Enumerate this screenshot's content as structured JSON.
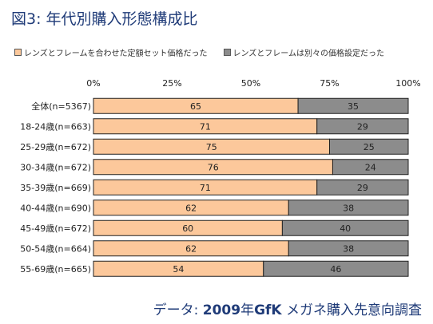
{
  "title": "図3: 年代別購入形態構成比",
  "source": {
    "prefix": "データ: ",
    "year": "2009",
    "mid": "年",
    "brand": "GfK",
    "suffix": " メガネ購入先意向調査"
  },
  "chart_data": {
    "type": "bar",
    "orientation": "horizontal",
    "stacked": true,
    "legend_position": "top",
    "xlim": [
      0,
      100
    ],
    "x_ticks": [
      "0%",
      "25%",
      "50%",
      "75%",
      "100%"
    ],
    "categories": [
      "全体(n=5367)",
      "18-24歳(n=663)",
      "25-29歳(n=672)",
      "30-34歳(n=672)",
      "35-39歳(n=669)",
      "40-44歳(n=690)",
      "45-49歳(n=672)",
      "50-54歳(n=664)",
      "55-69歳(n=665)"
    ],
    "series": [
      {
        "name": "レンズとフレームを合わせた定額セット価格だった",
        "color": "#fcc89b",
        "values": [
          65,
          71,
          75,
          76,
          71,
          62,
          60,
          62,
          54
        ]
      },
      {
        "name": "レンズとフレームは別々の価格設定だった",
        "color": "#8c8c8c",
        "values": [
          35,
          29,
          25,
          24,
          29,
          38,
          40,
          38,
          46
        ]
      }
    ]
  }
}
